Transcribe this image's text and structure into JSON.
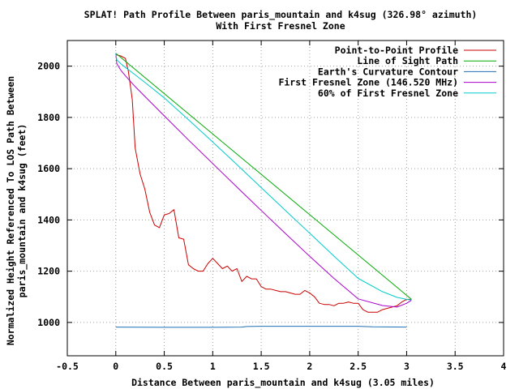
{
  "chart_data": {
    "type": "line",
    "title": "SPLAT! Path Profile Between paris_mountain and k4sug (326.98° azimuth)",
    "subtitle": "With First Fresnel Zone",
    "xlabel": "Distance Between paris_mountain and k4sug (3.05 miles)",
    "ylabel_lines": [
      "Normalized Height Referenced To LOS Path Between",
      "paris_mountain and k4sug (feet)"
    ],
    "xlim": [
      -0.5,
      4
    ],
    "ylim": [
      870,
      2100
    ],
    "xticks": [
      -0.5,
      0,
      0.5,
      1,
      1.5,
      2,
      2.5,
      3,
      3.5,
      4
    ],
    "xtick_labels": [
      "-0.5",
      "0",
      "0.5",
      "1",
      "1.5",
      "2",
      "2.5",
      "3",
      "3.5",
      "4"
    ],
    "yticks": [
      1000,
      1200,
      1400,
      1600,
      1800,
      2000
    ],
    "ytick_labels": [
      "1000",
      "1200",
      "1400",
      "1600",
      "1800",
      "2000"
    ],
    "grid": true,
    "legend_position": "top-right",
    "series": [
      {
        "name": "Point-to-Point Profile",
        "color": "#cc0000",
        "x": [
          0.0,
          0.05,
          0.1,
          0.13,
          0.17,
          0.2,
          0.25,
          0.3,
          0.35,
          0.4,
          0.45,
          0.5,
          0.55,
          0.6,
          0.65,
          0.7,
          0.75,
          0.8,
          0.85,
          0.9,
          0.95,
          1.0,
          1.05,
          1.1,
          1.15,
          1.2,
          1.25,
          1.3,
          1.35,
          1.4,
          1.45,
          1.5,
          1.55,
          1.6,
          1.65,
          1.7,
          1.75,
          1.8,
          1.85,
          1.9,
          1.95,
          2.0,
          2.05,
          2.1,
          2.15,
          2.2,
          2.25,
          2.3,
          2.35,
          2.4,
          2.45,
          2.5,
          2.55,
          2.6,
          2.65,
          2.7,
          2.75,
          2.8,
          2.85,
          2.9,
          2.95,
          3.0,
          3.05
        ],
        "y": [
          2045,
          2040,
          2030,
          1980,
          1870,
          1680,
          1580,
          1520,
          1430,
          1380,
          1370,
          1420,
          1425,
          1440,
          1330,
          1325,
          1225,
          1210,
          1200,
          1200,
          1230,
          1250,
          1230,
          1210,
          1220,
          1200,
          1210,
          1160,
          1180,
          1170,
          1170,
          1140,
          1130,
          1130,
          1125,
          1120,
          1120,
          1115,
          1110,
          1110,
          1125,
          1115,
          1100,
          1075,
          1070,
          1070,
          1065,
          1075,
          1075,
          1080,
          1075,
          1075,
          1050,
          1040,
          1040,
          1040,
          1050,
          1055,
          1060,
          1065,
          1080,
          1090,
          1090
        ]
      },
      {
        "name": "Line of Sight Path",
        "color": "#00aa00",
        "x": [
          0.0,
          3.05
        ],
        "y": [
          2050,
          1090
        ]
      },
      {
        "name": "Earth's Curvature Contour",
        "color": "#1f6fb4",
        "x": [
          0.0,
          0.5,
          1.0,
          1.3,
          1.35,
          1.5,
          2.0,
          2.5,
          2.65,
          3.0
        ],
        "y": [
          982,
          981,
          981,
          982,
          984,
          985,
          985,
          985,
          983,
          982
        ]
      },
      {
        "name": "First Fresnel Zone (146.520 MHz)",
        "color": "#aa00cc",
        "x": [
          0.0,
          0.01,
          0.05,
          0.1,
          0.2,
          0.3,
          0.5,
          0.75,
          1.0,
          1.25,
          1.5,
          1.75,
          2.0,
          2.25,
          2.5,
          2.75,
          2.9,
          3.0,
          3.04,
          3.05
        ],
        "y": [
          2050,
          2010,
          1985,
          1962,
          1920,
          1882,
          1806,
          1712,
          1620,
          1528,
          1437,
          1347,
          1258,
          1172,
          1092,
          1066,
          1060,
          1075,
          1084,
          1090
        ]
      },
      {
        "name": "60% of First Fresnel Zone",
        "color": "#00cccc",
        "x": [
          0.0,
          0.01,
          0.05,
          0.1,
          0.2,
          0.3,
          0.5,
          0.75,
          1.0,
          1.25,
          1.5,
          1.75,
          2.0,
          2.25,
          2.5,
          2.75,
          2.9,
          3.0,
          3.04,
          3.05
        ],
        "y": [
          2050,
          2025,
          2010,
          1995,
          1966,
          1937,
          1876,
          1791,
          1704,
          1616,
          1526,
          1437,
          1348,
          1259,
          1172,
          1120,
          1098,
          1090,
          1088,
          1090
        ]
      }
    ]
  }
}
